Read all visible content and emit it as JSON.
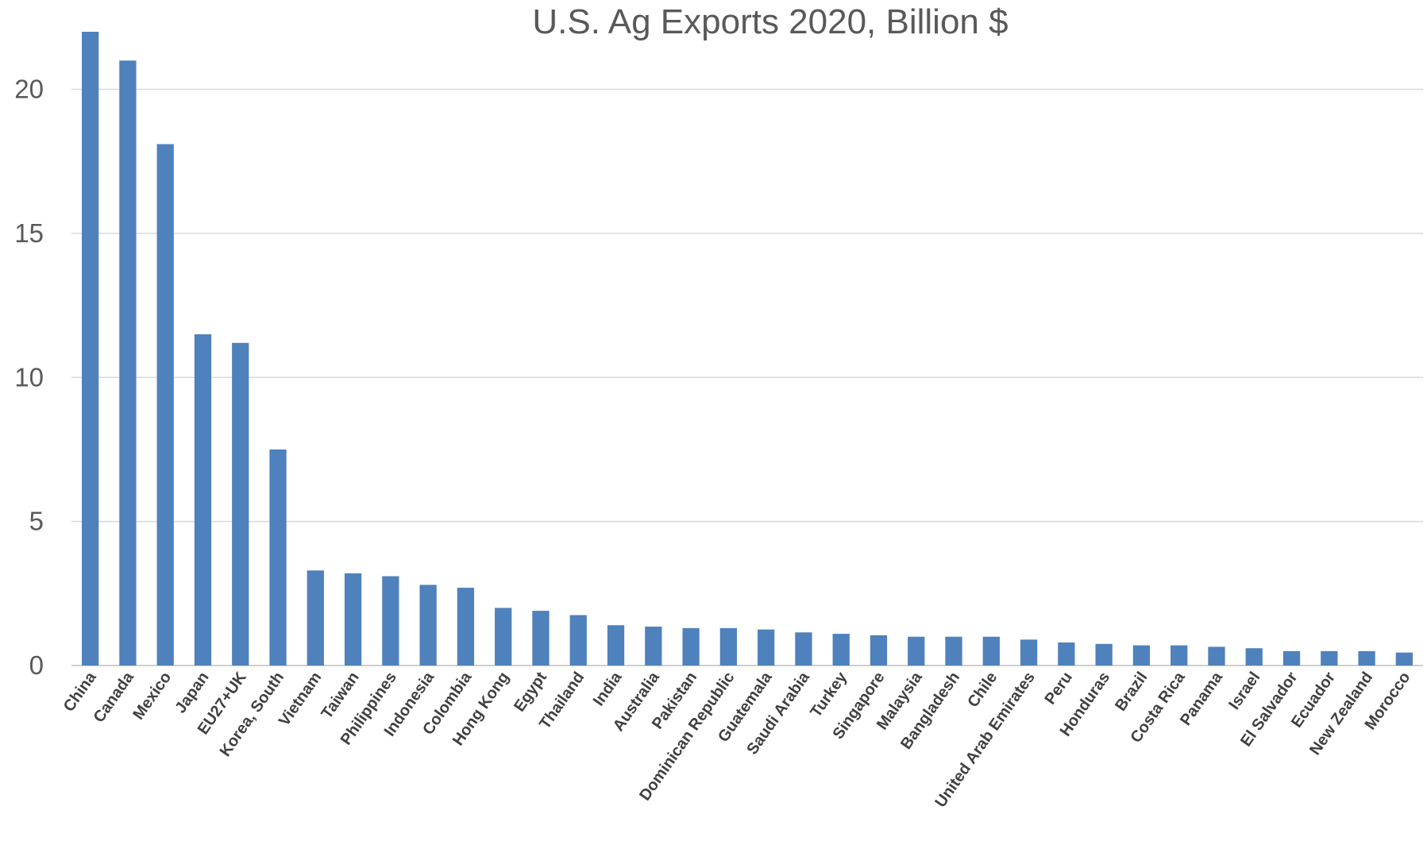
{
  "chart_data": {
    "type": "bar",
    "title": "U.S. Ag Exports 2020, Billion $",
    "xlabel": "",
    "ylabel": "",
    "ylim": [
      0,
      22
    ],
    "yticks": [
      0,
      5,
      10,
      15,
      20
    ],
    "grid": true,
    "legend": "none",
    "bar_color": "#4f81bd",
    "categories": [
      "China",
      "Canada",
      "Mexico",
      "Japan",
      "EU27+UK",
      "Korea, South",
      "Vietnam",
      "Taiwan",
      "Philippines",
      "Indonesia",
      "Colombia",
      "Hong Kong",
      "Egypt",
      "Thailand",
      "India",
      "Australia",
      "Pakistan",
      "Dominican Republic",
      "Guatemala",
      "Saudi Arabia",
      "Turkey",
      "Singapore",
      "Malaysia",
      "Bangladesh",
      "Chile",
      "United Arab Emirates",
      "Peru",
      "Honduras",
      "Brazil",
      "Costa Rica",
      "Panama",
      "Israel",
      "El Salvador",
      "Ecuador",
      "New Zealand",
      "Morocco"
    ],
    "values": [
      22.0,
      21.0,
      18.1,
      11.5,
      11.2,
      7.5,
      3.3,
      3.2,
      3.1,
      2.8,
      2.7,
      2.0,
      1.9,
      1.75,
      1.4,
      1.35,
      1.3,
      1.3,
      1.25,
      1.15,
      1.1,
      1.05,
      1.0,
      1.0,
      1.0,
      0.9,
      0.8,
      0.75,
      0.7,
      0.7,
      0.65,
      0.6,
      0.5,
      0.5,
      0.5,
      0.45
    ]
  }
}
